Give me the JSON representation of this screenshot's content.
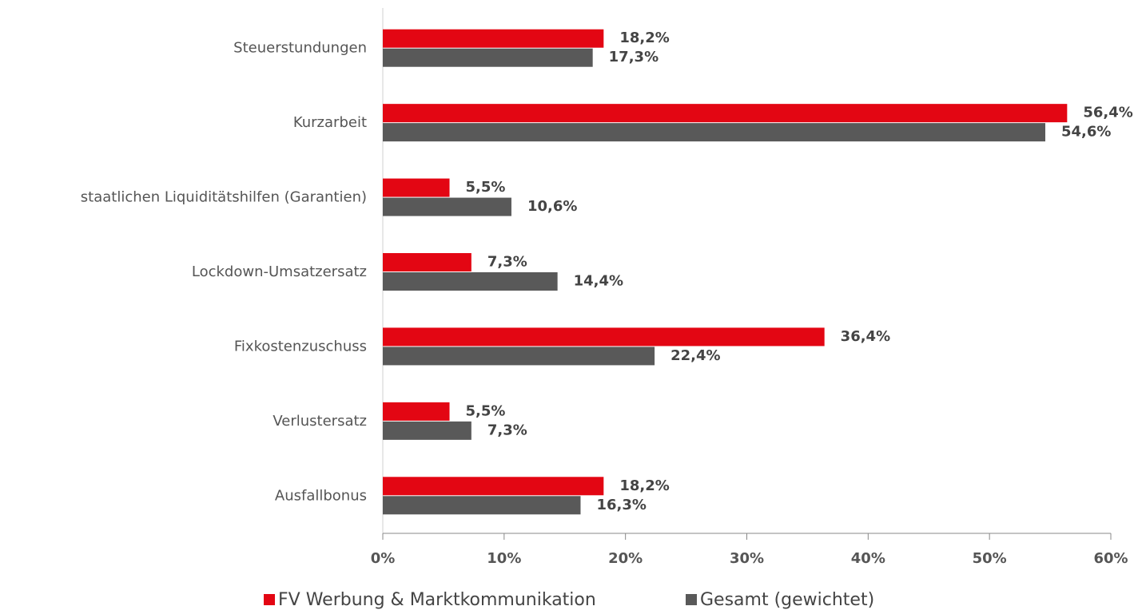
{
  "chart_data": {
    "type": "hbar",
    "categories": [
      "Steuerstundungen",
      "Kurzarbeit",
      "staatlichen Liquiditätshilfen (Garantien)",
      "Lockdown-Umsatzersatz",
      "Fixkostenzuschuss",
      "Verlustersatz",
      "Ausfallbonus"
    ],
    "series": [
      {
        "name": "FV Werbung & Marktkommunikation",
        "color": "#e30613",
        "values": [
          18.2,
          56.4,
          5.5,
          7.3,
          36.4,
          5.5,
          18.2
        ],
        "value_labels": [
          "18,2%",
          "56,4%",
          "5,5%",
          "7,3%",
          "36,4%",
          "5,5%",
          "18,2%"
        ]
      },
      {
        "name": "Gesamt (gewichtet)",
        "color": "#595959",
        "values": [
          17.3,
          54.6,
          10.6,
          14.4,
          22.4,
          7.3,
          16.3
        ],
        "value_labels": [
          "17,3%",
          "54,6%",
          "10,6%",
          "14,4%",
          "22,4%",
          "7,3%",
          "16,3%"
        ]
      }
    ],
    "xlim": [
      0,
      60
    ],
    "xticks": [
      {
        "value": 0,
        "label": "0%"
      },
      {
        "value": 10,
        "label": "10%"
      },
      {
        "value": 20,
        "label": "20%"
      },
      {
        "value": 30,
        "label": "30%"
      },
      {
        "value": 40,
        "label": "40%"
      },
      {
        "value": 50,
        "label": "50%"
      },
      {
        "value": 60,
        "label": "60%"
      }
    ],
    "legend": "bottom"
  }
}
